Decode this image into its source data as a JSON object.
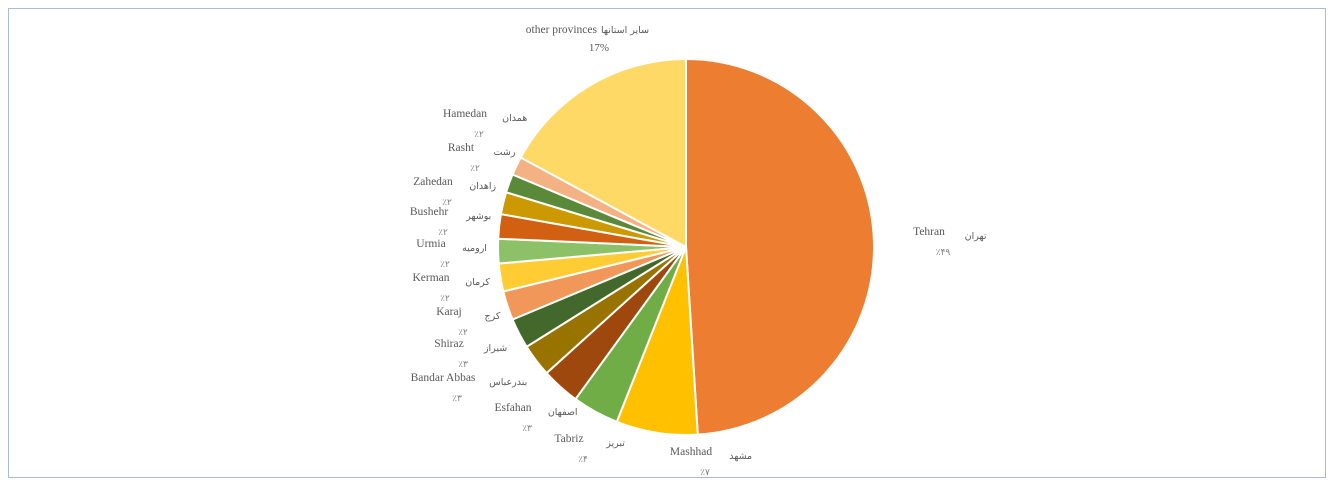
{
  "chart_data": {
    "type": "pie",
    "start_angle_deg": 0,
    "direction": "clockwise",
    "slices": [
      {
        "en": "Tehran",
        "fa": "تهران",
        "pct_label": "٪۴۹",
        "value": 49,
        "color": "#ED7D31"
      },
      {
        "en": "Mashhad",
        "fa": "مشهد",
        "pct_label": "٪۷",
        "value": 7,
        "color": "#FFC000"
      },
      {
        "en": "Tabriz",
        "fa": "تبریز",
        "pct_label": "٪۴",
        "value": 4,
        "color": "#70AD47"
      },
      {
        "en": "Esfahan",
        "fa": "اصفهان",
        "pct_label": "٪۳",
        "value": 3.3,
        "color": "#9E480E"
      },
      {
        "en": "Bandar Abbas",
        "fa": "بندرعباس",
        "pct_label": "٪۳",
        "value": 2.8,
        "color": "#997300"
      },
      {
        "en": "Shiraz",
        "fa": "شیراز",
        "pct_label": "٪۳",
        "value": 2.6,
        "color": "#43682B"
      },
      {
        "en": "Karaj",
        "fa": "کرج",
        "pct_label": "٪۲",
        "value": 2.5,
        "color": "#F1975A"
      },
      {
        "en": "Kerman",
        "fa": "کرمان",
        "pct_label": "٪۲",
        "value": 2.4,
        "color": "#FFCD33"
      },
      {
        "en": "Urmia",
        "fa": "ارومیه",
        "pct_label": "٪۲",
        "value": 2.1,
        "color": "#8CC168"
      },
      {
        "en": "Bushehr",
        "fa": "بوشهر",
        "pct_label": "٪۲",
        "value": 2.1,
        "color": "#D26012"
      },
      {
        "en": "Zahedan",
        "fa": "زاهدان",
        "pct_label": "٪۲",
        "value": 1.9,
        "color": "#CC9A00"
      },
      {
        "en": "Rasht",
        "fa": "رشت",
        "pct_label": "٪۲",
        "value": 1.6,
        "color": "#5A8A39"
      },
      {
        "en": "Hamedan",
        "fa": "همدان",
        "pct_label": "٪۲",
        "value": 1.6,
        "color": "#F4B183"
      },
      {
        "en": "other provinces",
        "fa": "سایر استانها",
        "pct_label": "17%",
        "value": 17.1,
        "color": "#FFD966"
      }
    ]
  }
}
